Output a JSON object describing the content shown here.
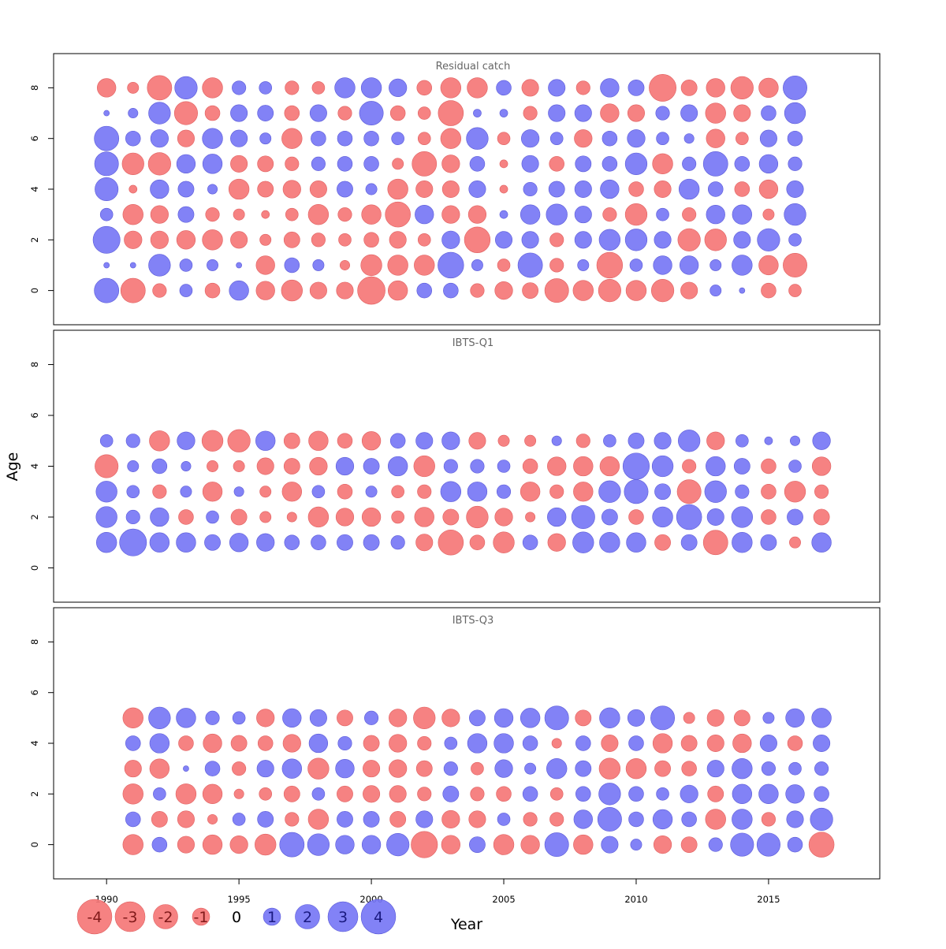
{
  "chart_data": {
    "type": "bubble",
    "xlabel": "Year",
    "ylabel": "Age",
    "x_ticks": [
      1990,
      1995,
      2000,
      2005,
      2010,
      2015
    ],
    "y_ticks": [
      0,
      2,
      4,
      6,
      8
    ],
    "xlim": [
      1988,
      2019.2
    ],
    "ylim": [
      -1.35,
      9.35
    ],
    "colors": {
      "positive": "#7777f5",
      "negative": "#f57777"
    },
    "panels": [
      {
        "title": "Residual catch",
        "years": [
          1990,
          1991,
          1992,
          1993,
          1994,
          1995,
          1996,
          1997,
          1998,
          1999,
          2000,
          2001,
          2002,
          2003,
          2004,
          2005,
          2006,
          2007,
          2008,
          2009,
          2010,
          2011,
          2012,
          2013,
          2014,
          2015,
          2016
        ],
        "ages": [
          0,
          1,
          2,
          3,
          4,
          5,
          6,
          7,
          8
        ],
        "values": [
          [
            1.9,
            0.1,
            2.3,
            0.5,
            1.7,
            1.8,
            1.9,
            0.1,
            -1.1
          ],
          [
            -1.9,
            0.1,
            -1.0,
            -1.3,
            -0.2,
            -1.5,
            0.7,
            0.3,
            -0.4
          ],
          [
            -0.6,
            1.5,
            -1.0,
            -1.0,
            1.1,
            -1.6,
            1.0,
            1.5,
            -1.9
          ],
          [
            0.5,
            0.5,
            -1.1,
            0.8,
            0.8,
            1.1,
            -0.9,
            -1.7,
            1.6
          ],
          [
            -0.7,
            0.4,
            -1.3,
            -0.6,
            0.3,
            1.2,
            1.3,
            -0.7,
            -1.3
          ],
          [
            1.2,
            0.1,
            -0.9,
            -0.4,
            -1.3,
            -0.9,
            0.9,
            0.9,
            0.6
          ],
          [
            -1.1,
            -1.1,
            -0.4,
            -0.2,
            -0.8,
            -0.8,
            0.4,
            0.8,
            0.5
          ],
          [
            -1.4,
            0.7,
            -0.8,
            -0.5,
            -1.0,
            -0.6,
            -1.3,
            -0.7,
            -0.6
          ],
          [
            -0.9,
            0.4,
            -0.6,
            -1.3,
            -0.9,
            0.6,
            0.7,
            0.9,
            -0.5
          ],
          [
            -0.9,
            -0.3,
            -0.5,
            -0.6,
            0.8,
            0.7,
            0.7,
            -0.6,
            1.3
          ],
          [
            -2.4,
            -1.4,
            -0.7,
            -1.2,
            0.4,
            0.7,
            0.7,
            1.8,
            1.3
          ],
          [
            -1.2,
            -1.3,
            -0.9,
            -2.0,
            -1.3,
            -0.4,
            0.5,
            -0.7,
            1.0
          ],
          [
            0.7,
            -1.3,
            -0.5,
            1.1,
            -0.9,
            -1.9,
            -0.5,
            -0.5,
            -0.7
          ],
          [
            0.7,
            2.1,
            1.0,
            -1.0,
            -0.9,
            -1.0,
            -1.3,
            -2.0,
            -1.3
          ],
          [
            -0.6,
            0.4,
            -2.1,
            -1.0,
            0.9,
            0.7,
            1.5,
            0.2,
            -1.3
          ],
          [
            -1.0,
            -0.5,
            0.9,
            0.2,
            -0.2,
            -0.2,
            -0.5,
            0.2,
            0.7
          ],
          [
            -0.8,
            1.9,
            0.9,
            1.2,
            0.6,
            0.9,
            1.0,
            -0.6,
            -0.9
          ],
          [
            -1.8,
            -0.6,
            -0.6,
            1.4,
            0.8,
            -0.7,
            0.5,
            0.9,
            0.9
          ],
          [
            -1.3,
            0.4,
            0.9,
            0.9,
            0.9,
            0.8,
            -1.0,
            0.9,
            -0.6
          ],
          [
            -1.6,
            -2.1,
            1.4,
            -0.6,
            1.1,
            0.7,
            0.7,
            -1.1,
            1.1
          ],
          [
            -1.3,
            0.5,
            1.5,
            -1.5,
            -0.7,
            1.5,
            1.0,
            -0.9,
            0.8
          ],
          [
            -1.6,
            1.1,
            0.9,
            0.5,
            -0.9,
            -1.3,
            0.5,
            0.6,
            -2.3
          ],
          [
            -0.9,
            1.1,
            -1.6,
            -0.6,
            1.3,
            0.6,
            0.3,
            0.9,
            -0.8
          ],
          [
            0.4,
            0.4,
            -1.5,
            1.1,
            0.7,
            1.9,
            -1.1,
            -1.3,
            -1.1
          ],
          [
            0.1,
            1.3,
            0.9,
            1.2,
            -0.7,
            0.7,
            -0.5,
            -0.9,
            -1.6
          ],
          [
            -0.7,
            -1.2,
            1.6,
            -0.4,
            -1.1,
            1.1,
            0.9,
            0.7,
            -1.2
          ],
          [
            -0.5,
            -1.8,
            0.5,
            1.5,
            0.9,
            0.6,
            0.7,
            1.4,
            1.8
          ]
        ]
      },
      {
        "title": "IBTS-Q1",
        "years": [
          1990,
          1991,
          1992,
          1993,
          1994,
          1995,
          1996,
          1997,
          1998,
          1999,
          2000,
          2001,
          2002,
          2003,
          2004,
          2005,
          2006,
          2007,
          2008,
          2009,
          2010,
          2011,
          2012,
          2013,
          2014,
          2015,
          2016,
          2017
        ],
        "ages": [
          1,
          2,
          3,
          4,
          5
        ],
        "values": [
          [
            1.3,
            1.4,
            1.4,
            -1.7,
            0.5
          ],
          [
            2.3,
            0.6,
            0.5,
            0.4,
            0.6
          ],
          [
            1.2,
            1.1,
            -0.6,
            0.7,
            -1.3
          ],
          [
            1.2,
            -0.7,
            0.4,
            0.3,
            1.0
          ],
          [
            0.8,
            0.5,
            -1.2,
            -0.4,
            -1.4
          ],
          [
            1.1,
            -0.8,
            0.3,
            -0.4,
            -1.6
          ],
          [
            1.0,
            -0.4,
            -0.4,
            -0.9,
            1.2
          ],
          [
            0.7,
            -0.3,
            -1.2,
            -0.8,
            -0.8
          ],
          [
            0.7,
            -1.3,
            0.5,
            -1.0,
            -1.2
          ],
          [
            0.8,
            -1.0,
            -0.7,
            1.0,
            -0.7
          ],
          [
            0.8,
            -1.1,
            0.4,
            0.8,
            -1.1
          ],
          [
            0.6,
            -0.5,
            -0.5,
            1.2,
            0.7
          ],
          [
            -0.9,
            -1.2,
            -0.6,
            -1.4,
            0.9
          ],
          [
            -2.0,
            -0.8,
            1.3,
            0.6,
            1.0
          ],
          [
            -0.7,
            -1.5,
            1.2,
            0.6,
            -0.9
          ],
          [
            -1.4,
            -1.0,
            0.6,
            0.5,
            -0.4
          ],
          [
            0.7,
            -0.3,
            -1.2,
            -0.7,
            -0.4
          ],
          [
            -1.0,
            1.1,
            -0.6,
            -1.1,
            0.3
          ],
          [
            1.4,
            1.7,
            -1.2,
            -1.2,
            -0.6
          ],
          [
            1.3,
            0.8,
            1.5,
            -1.2,
            0.5
          ],
          [
            1.2,
            -0.7,
            1.8,
            2.2,
            0.8
          ],
          [
            -0.8,
            1.3,
            0.8,
            1.4,
            0.9
          ],
          [
            0.8,
            2.0,
            -1.8,
            -0.6,
            1.5
          ],
          [
            -1.9,
            0.9,
            1.5,
            1.2,
            -1.0
          ],
          [
            1.3,
            1.4,
            0.6,
            0.8,
            0.5
          ],
          [
            0.8,
            -0.7,
            -0.7,
            -0.7,
            0.2
          ],
          [
            -0.4,
            0.8,
            -1.4,
            0.5,
            0.3
          ],
          [
            1.2,
            -0.8,
            -0.6,
            -1.1,
            1.0
          ]
        ]
      },
      {
        "title": "IBTS-Q3",
        "years": [
          1991,
          1992,
          1993,
          1994,
          1995,
          1996,
          1997,
          1998,
          1999,
          2000,
          2001,
          2002,
          2003,
          2004,
          2005,
          2006,
          2007,
          2008,
          2009,
          2010,
          2011,
          2012,
          2013,
          2014,
          2015,
          2016,
          2017
        ],
        "ages": [
          0,
          1,
          2,
          3,
          4,
          5
        ],
        "values": [
          [
            -1.3,
            0.7,
            -1.3,
            -0.9,
            0.7,
            -1.3
          ],
          [
            0.7,
            -0.8,
            0.5,
            -1.2,
            1.2,
            1.5
          ],
          [
            -0.9,
            -0.9,
            -1.3,
            0.1,
            -0.7,
            1.2
          ],
          [
            -1.2,
            -0.3,
            -1.2,
            0.7,
            -1.1,
            0.6
          ],
          [
            -1.0,
            0.5,
            -0.3,
            -0.6,
            -0.8,
            0.5
          ],
          [
            -1.4,
            0.8,
            -0.5,
            0.9,
            -0.7,
            -1.0
          ],
          [
            1.9,
            -0.6,
            -0.8,
            1.2,
            -1.0,
            1.1
          ],
          [
            1.5,
            -1.3,
            0.5,
            -1.4,
            1.1,
            0.9
          ],
          [
            1.1,
            0.8,
            -0.8,
            1.1,
            0.6,
            -0.8
          ],
          [
            1.1,
            0.8,
            -0.9,
            -0.9,
            -0.8,
            0.6
          ],
          [
            1.6,
            -0.8,
            -0.9,
            -1.0,
            -1.0,
            -1.0
          ],
          [
            -2.2,
            0.9,
            -0.6,
            -0.8,
            -0.6,
            -1.5
          ],
          [
            -1.1,
            -1.0,
            0.8,
            0.6,
            0.5,
            -1.0
          ],
          [
            0.8,
            -0.9,
            -0.6,
            -0.5,
            1.2,
            0.8
          ],
          [
            -1.3,
            0.5,
            -0.7,
            1.0,
            1.2,
            1.1
          ],
          [
            -1.1,
            -0.6,
            0.7,
            0.4,
            0.7,
            1.2
          ],
          [
            1.8,
            -0.6,
            -0.5,
            1.3,
            -0.3,
            1.8
          ],
          [
            -1.2,
            1.1,
            0.7,
            0.8,
            0.7,
            -0.8
          ],
          [
            0.9,
            1.8,
            1.5,
            -1.4,
            -0.9,
            1.3
          ],
          [
            0.4,
            0.7,
            0.7,
            -1.3,
            0.7,
            0.9
          ],
          [
            -1.0,
            1.2,
            0.5,
            -0.8,
            -1.2,
            1.8
          ],
          [
            -0.8,
            0.7,
            1.0,
            -0.7,
            -0.8,
            -0.4
          ],
          [
            0.6,
            -1.3,
            -0.8,
            0.9,
            -0.9,
            -0.9
          ],
          [
            1.7,
            1.3,
            1.2,
            1.3,
            -1.1,
            -0.8
          ],
          [
            1.7,
            -0.6,
            1.2,
            0.6,
            0.9,
            0.4
          ],
          [
            0.7,
            0.9,
            1.1,
            0.5,
            -0.7,
            1.1
          ],
          [
            -2.0,
            1.6,
            0.7,
            0.6,
            0.9,
            1.2
          ]
        ]
      }
    ],
    "legend": {
      "values": [
        -4,
        -3,
        -2,
        -1,
        0,
        1,
        2,
        3,
        4
      ],
      "labels": [
        "-4",
        "-3",
        "-2",
        "-1",
        "0",
        "1",
        "2",
        "3",
        "4"
      ]
    }
  }
}
